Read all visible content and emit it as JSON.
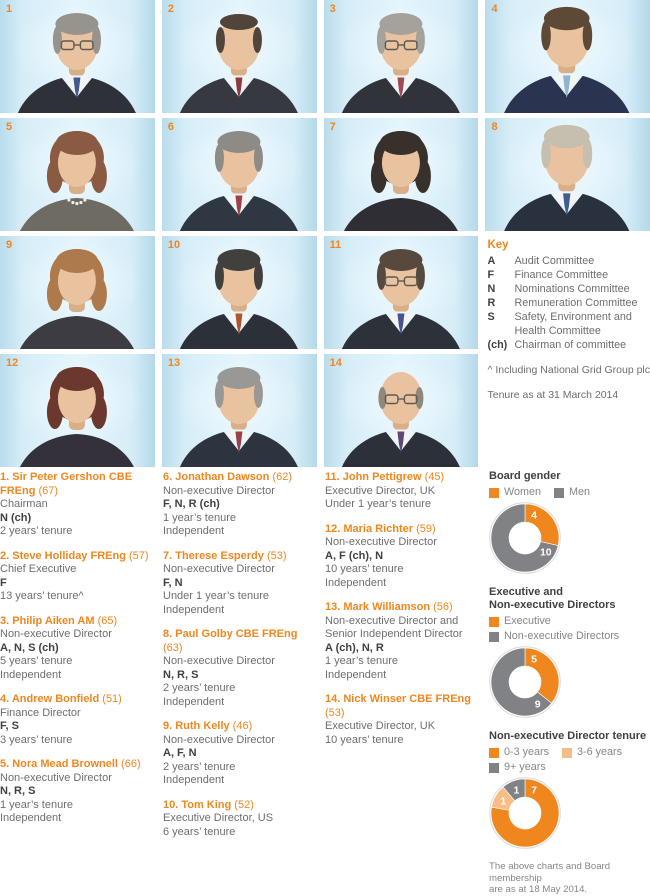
{
  "colors": {
    "accent_orange": "#F0861E",
    "light_orange": "#F6BE87",
    "slice_gray": "#818285",
    "heading_dark": "#414042",
    "body_gray": "#6D6E71",
    "photo_bg_blue": "#CDE8F4"
  },
  "photos": [
    {
      "number": "1",
      "appearance": {
        "female": false,
        "hair": "#97938D",
        "suit": "#2E3138",
        "tie": "#41598C",
        "glasses": true
      }
    },
    {
      "number": "2",
      "appearance": {
        "female": false,
        "hair": "#51443B",
        "suit": "#363A40",
        "tie": "#8C3A42",
        "receding": true
      }
    },
    {
      "number": "3",
      "appearance": {
        "female": false,
        "hair": "#A5A29C",
        "suit": "#303339",
        "tie": "#A04A58",
        "glasses": true
      }
    },
    {
      "number": "4",
      "appearance": {
        "female": false,
        "hair": "#5D4936",
        "suit": "#2A3450",
        "tie": "#8FB4D2"
      }
    },
    {
      "number": "5",
      "appearance": {
        "female": true,
        "hair": "#8A5B42",
        "suit": "#6E6B63",
        "pearls": true
      }
    },
    {
      "number": "6",
      "appearance": {
        "female": false,
        "hair": "#8E8B86",
        "suit": "#2F3742",
        "tie": "#9E4046"
      }
    },
    {
      "number": "7",
      "appearance": {
        "female": true,
        "hair": "#38302A",
        "suit": "#2E2E34"
      }
    },
    {
      "number": "8",
      "appearance": {
        "female": false,
        "hair": "#C6BEAE",
        "suit": "#2A313E",
        "tie": "#3F5E8F"
      }
    },
    {
      "number": "9",
      "appearance": {
        "female": true,
        "hair": "#AE7A4C",
        "suit": "#3C3C42"
      }
    },
    {
      "number": "10",
      "appearance": {
        "female": false,
        "hair": "#42403C",
        "suit": "#2C3038",
        "tie": "#AE5530"
      }
    },
    {
      "number": "11",
      "appearance": {
        "female": false,
        "hair": "#57493D",
        "suit": "#2D3139",
        "tie": "#47538C",
        "glasses": true
      }
    },
    {
      "number": "12",
      "appearance": {
        "female": true,
        "hair": "#6B382E",
        "suit": "#34313B"
      }
    },
    {
      "number": "13",
      "appearance": {
        "female": false,
        "hair": "#9A9894",
        "suit": "#2D3440",
        "tie": "#95424A"
      }
    },
    {
      "number": "14",
      "appearance": {
        "female": false,
        "bald": true,
        "suit": "#2C3139",
        "tie": "#5E4876",
        "glasses": true
      }
    }
  ],
  "key": {
    "title": "Key",
    "entries": [
      {
        "code": "A",
        "label": "Audit Committee"
      },
      {
        "code": "F",
        "label": "Finance Committee"
      },
      {
        "code": "N",
        "label": "Nominations Committee"
      },
      {
        "code": "R",
        "label": "Remuneration Committee"
      },
      {
        "code": "S",
        "label": "Safety, Environment and Health Committee"
      },
      {
        "code": "(ch)",
        "label": "Chairman of committee"
      }
    ],
    "footnote1": "^ Including National Grid Group plc",
    "footnote2": "Tenure as at 31 March 2014"
  },
  "director_columns": [
    [
      {
        "name": "1. Sir Peter Gershon CBE FREng",
        "age": "(67)",
        "lines": [
          {
            "text": "Chairman",
            "bold": false
          },
          {
            "text": "N (ch)",
            "bold": true
          },
          {
            "text": "2 years’ tenure",
            "bold": false
          }
        ]
      },
      {
        "name": "2. Steve Holliday FREng",
        "age": "(57)",
        "lines": [
          {
            "text": "Chief Executive",
            "bold": false
          },
          {
            "text": "F",
            "bold": true
          },
          {
            "text": "13 years’ tenure^",
            "bold": false
          }
        ]
      },
      {
        "name": "3. Philip Aiken AM",
        "age": "(65)",
        "lines": [
          {
            "text": "Non-executive Director",
            "bold": false
          },
          {
            "text": "A, N, S (ch)",
            "bold": true
          },
          {
            "text": "5 years’ tenure",
            "bold": false
          },
          {
            "text": "Independent",
            "bold": false
          }
        ]
      },
      {
        "name": "4. Andrew Bonfield",
        "age": "(51)",
        "lines": [
          {
            "text": "Finance Director",
            "bold": false
          },
          {
            "text": "F, S",
            "bold": true
          },
          {
            "text": "3 years’ tenure",
            "bold": false
          }
        ]
      },
      {
        "name": "5. Nora Mead Brownell",
        "age": "(66)",
        "lines": [
          {
            "text": "Non-executive Director",
            "bold": false
          },
          {
            "text": "N, R, S",
            "bold": true
          },
          {
            "text": "1 year’s tenure",
            "bold": false
          },
          {
            "text": "Independent",
            "bold": false
          }
        ]
      }
    ],
    [
      {
        "name": "6. Jonathan Dawson",
        "age": "(62)",
        "lines": [
          {
            "text": "Non-executive Director",
            "bold": false
          },
          {
            "text": "F, N, R (ch)",
            "bold": true
          },
          {
            "text": "1 year’s tenure",
            "bold": false
          },
          {
            "text": "Independent",
            "bold": false
          }
        ]
      },
      {
        "name": "7. Therese Esperdy",
        "age": "(53)",
        "lines": [
          {
            "text": "Non-executive Director",
            "bold": false
          },
          {
            "text": "F, N",
            "bold": true
          },
          {
            "text": "Under 1 year’s tenure",
            "bold": false
          },
          {
            "text": "Independent",
            "bold": false
          }
        ]
      },
      {
        "name": "8. Paul Golby CBE FREng",
        "age": "(63)",
        "lines": [
          {
            "text": "Non-executive Director",
            "bold": false
          },
          {
            "text": "N, R, S",
            "bold": true
          },
          {
            "text": "2 years’ tenure",
            "bold": false
          },
          {
            "text": "Independent",
            "bold": false
          }
        ]
      },
      {
        "name": "9. Ruth Kelly",
        "age": "(46)",
        "lines": [
          {
            "text": "Non-executive Director",
            "bold": false
          },
          {
            "text": "A, F, N",
            "bold": true
          },
          {
            "text": "2 years’ tenure",
            "bold": false
          },
          {
            "text": "Independent",
            "bold": false
          }
        ]
      },
      {
        "name": "10. Tom King",
        "age": "(52)",
        "lines": [
          {
            "text": "Executive Director, US",
            "bold": false
          },
          {
            "text": "6 years’ tenure",
            "bold": false
          }
        ]
      }
    ],
    [
      {
        "name": "11. John Pettigrew",
        "age": "(45)",
        "lines": [
          {
            "text": "Executive Director, UK",
            "bold": false
          },
          {
            "text": "Under 1 year’s tenure",
            "bold": false
          }
        ]
      },
      {
        "name": "12. Maria Richter",
        "age": "(59)",
        "lines": [
          {
            "text": "Non-executive Director",
            "bold": false
          },
          {
            "text": "A, F (ch), N",
            "bold": true
          },
          {
            "text": "10 years’ tenure",
            "bold": false
          },
          {
            "text": "Independent",
            "bold": false
          }
        ]
      },
      {
        "name": "13. Mark Williamson",
        "age": "(56)",
        "lines": [
          {
            "text": "Non-executive Director and Senior Independent Director",
            "bold": false
          },
          {
            "text": "A (ch), N, R",
            "bold": true
          },
          {
            "text": "1 year’s tenure",
            "bold": false
          },
          {
            "text": "Independent",
            "bold": false
          }
        ]
      },
      {
        "name": "14. Nick Winser CBE FREng",
        "age": "(53)",
        "lines": [
          {
            "text": "Executive Director, UK",
            "bold": false
          },
          {
            "text": "10 years’ tenure",
            "bold": false
          }
        ]
      }
    ]
  ],
  "chart_data": [
    {
      "type": "pie",
      "title": "Board gender",
      "title_lines": [
        "Board gender"
      ],
      "legend_rows": [
        [
          {
            "label": "Women",
            "color": "#F0861E"
          },
          {
            "label": "Men",
            "color": "#818285"
          }
        ]
      ],
      "slices": [
        {
          "name": "Women",
          "value": 4,
          "color": "#F0861E"
        },
        {
          "name": "Men",
          "value": 10,
          "color": "#818285"
        }
      ]
    },
    {
      "type": "pie",
      "title": "Executive and Non-executive Directors",
      "title_lines": [
        "Executive and",
        "Non-executive Directors"
      ],
      "legend_rows": [
        [
          {
            "label": "Executive",
            "color": "#F0861E"
          }
        ],
        [
          {
            "label": "Non-executive Directors",
            "color": "#818285"
          }
        ]
      ],
      "slices": [
        {
          "name": "Executive",
          "value": 5,
          "color": "#F0861E"
        },
        {
          "name": "Non-executive Directors",
          "value": 9,
          "color": "#818285"
        }
      ]
    },
    {
      "type": "pie",
      "title": "Non-executive Director tenure",
      "title_lines": [
        "Non-executive Director tenure"
      ],
      "legend_rows": [
        [
          {
            "label": "0-3 years",
            "color": "#F0861E"
          },
          {
            "label": "3-6 years",
            "color": "#F6BE87"
          }
        ],
        [
          {
            "label": "9+ years",
            "color": "#818285"
          }
        ]
      ],
      "slices": [
        {
          "name": "0-3 years",
          "value": 7,
          "color": "#F0861E"
        },
        {
          "name": "3-6 years",
          "value": 1,
          "color": "#F6BE87"
        },
        {
          "name": "9+ years",
          "value": 1,
          "color": "#818285"
        }
      ]
    }
  ],
  "charts_footnote_lines": [
    "The above charts and Board membership",
    "are as at 18 May 2014."
  ]
}
